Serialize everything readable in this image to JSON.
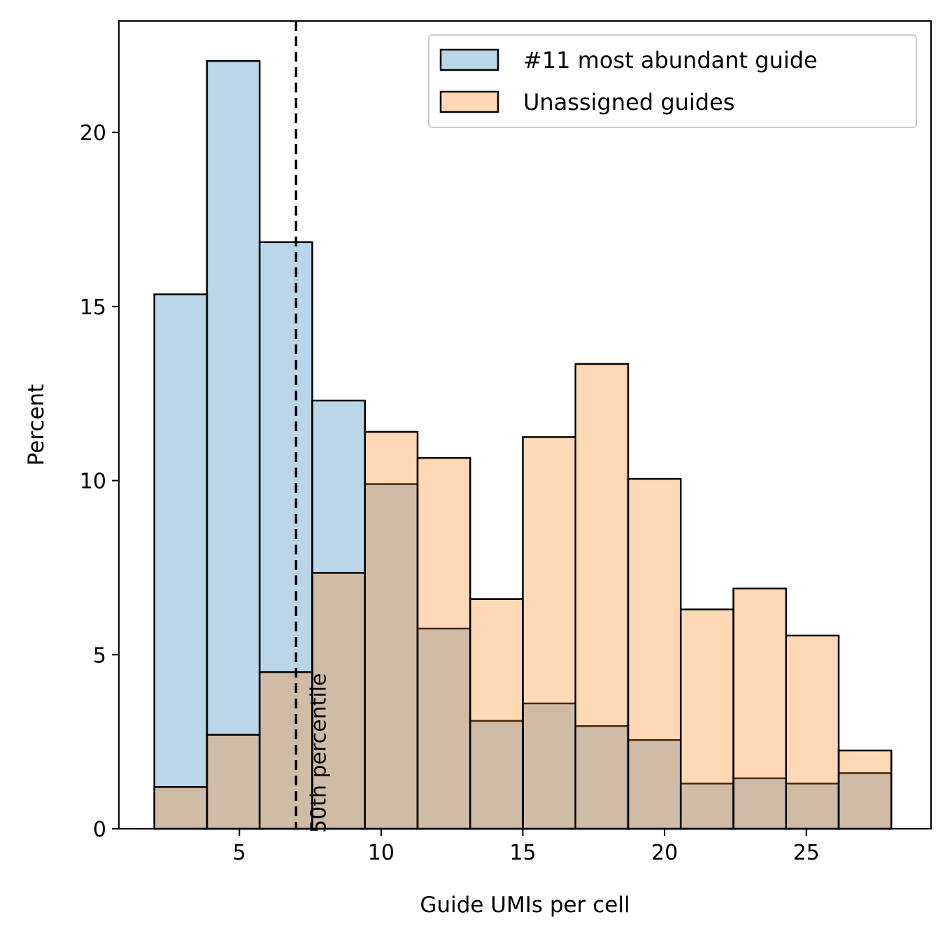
{
  "chart_data": {
    "type": "histogram",
    "xlabel": "Guide UMIs per cell",
    "ylabel": "Percent",
    "xlim": [
      0.75,
      29.4
    ],
    "ylim": [
      0,
      23.2
    ],
    "xticks": [
      5,
      10,
      15,
      20,
      25
    ],
    "yticks": [
      0,
      5,
      10,
      15,
      20
    ],
    "bin_edges": [
      2.0,
      3.857,
      5.714,
      7.571,
      9.429,
      11.286,
      13.143,
      15.0,
      16.857,
      18.714,
      20.571,
      22.429,
      24.286,
      26.143,
      28.0
    ],
    "series": [
      {
        "name": "#11 most abundant guide",
        "color": "#1f77b4",
        "values": [
          15.35,
          22.05,
          16.85,
          12.3,
          9.9,
          5.75,
          3.1,
          3.6,
          2.95,
          2.55,
          1.3,
          1.45,
          1.3,
          1.6
        ]
      },
      {
        "name": "Unassigned guides",
        "color": "#ff7f0e",
        "values": [
          1.2,
          2.7,
          4.5,
          7.35,
          11.4,
          10.65,
          6.6,
          11.25,
          13.35,
          10.05,
          6.3,
          6.9,
          5.55,
          2.25
        ]
      }
    ],
    "reference_line": {
      "x": 7.0,
      "style": "dashed",
      "label": "50th percentile"
    },
    "legend_position": "top-right",
    "grid": false
  }
}
